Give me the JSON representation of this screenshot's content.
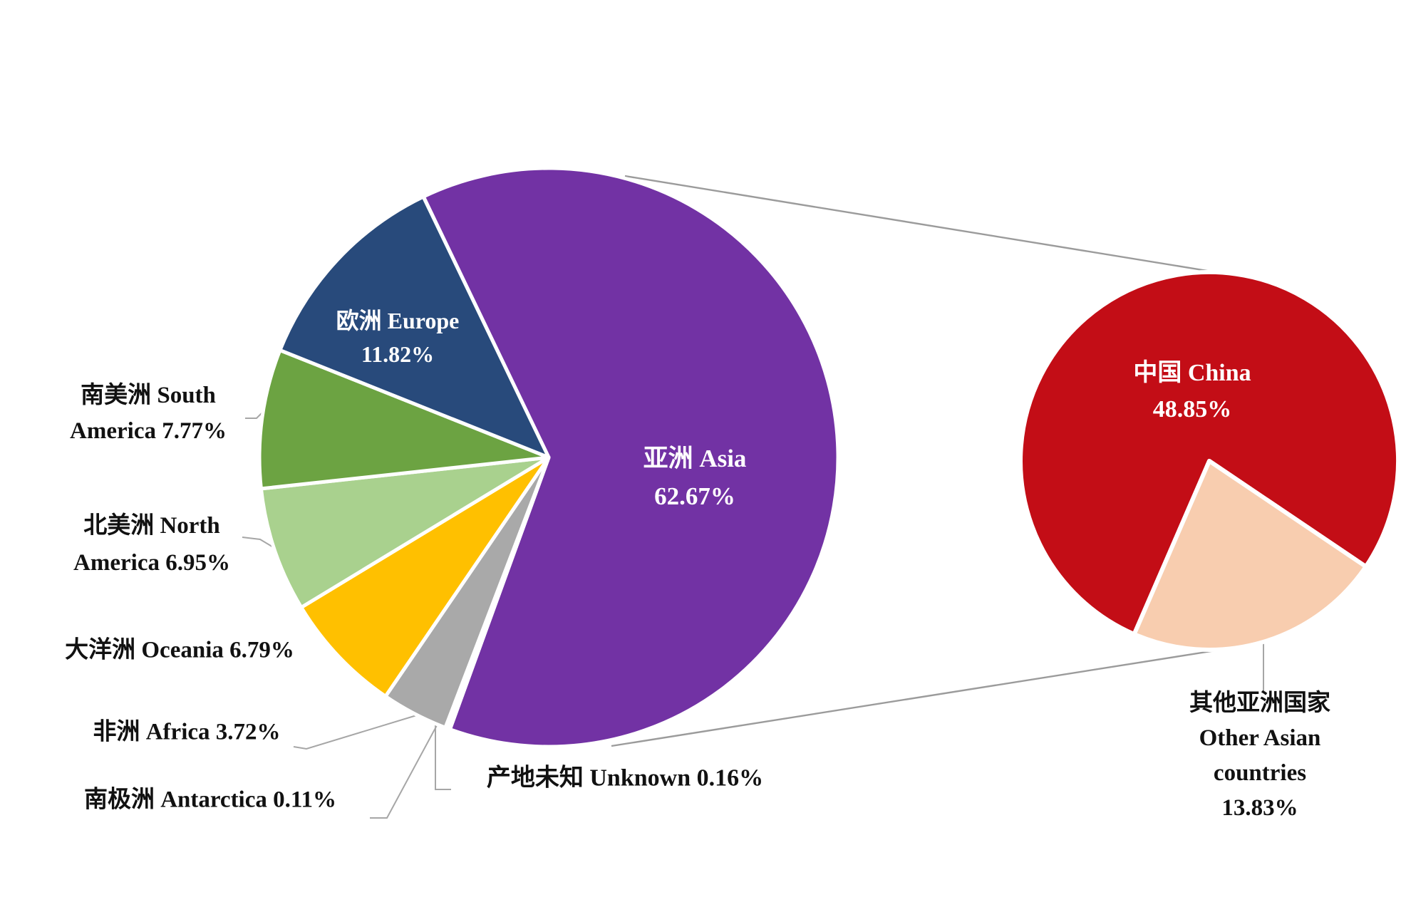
{
  "background": "#FFFFFF",
  "chart_data": {
    "type": "pie",
    "variant": "pie-of-pie",
    "title": "",
    "unit": "%",
    "legend_position": "none",
    "main_pie": {
      "slices": [
        {
          "id": "asia",
          "label_zh": "亚洲",
          "label_en": "Asia",
          "value": 62.67,
          "color": "#7232A4",
          "start_deg": -25.65,
          "sweep_deg": 225.61
        },
        {
          "id": "unknown",
          "label_zh": "产地未知",
          "label_en": "Unknown",
          "value": 0.16,
          "color": "#E7E6E6",
          "start_deg": 199.96,
          "sweep_deg": 0.58
        },
        {
          "id": "antarctica",
          "label_zh": "南极洲",
          "label_en": "Antarctica",
          "value": 0.11,
          "color": "#D9D9D9",
          "start_deg": 200.54,
          "sweep_deg": 0.4
        },
        {
          "id": "africa",
          "label_zh": "非洲",
          "label_en": "Africa",
          "value": 3.72,
          "color": "#A9A9A9",
          "start_deg": 200.94,
          "sweep_deg": 13.39
        },
        {
          "id": "oceania",
          "label_zh": "大洋洲",
          "label_en": "Oceania",
          "value": 6.79,
          "color": "#FFC000",
          "start_deg": 214.33,
          "sweep_deg": 24.44
        },
        {
          "id": "north-america",
          "label_zh": "北美洲",
          "label_en": "North America",
          "value": 6.95,
          "color": "#A9D18E",
          "start_deg": 238.77,
          "sweep_deg": 25.02
        },
        {
          "id": "south-america",
          "label_zh": "南美洲",
          "label_en": "South America",
          "value": 7.77,
          "color": "#6CA342",
          "start_deg": 263.79,
          "sweep_deg": 27.97
        },
        {
          "id": "europe",
          "label_zh": "欧洲",
          "label_en": "Europe",
          "value": 11.82,
          "color": "#284A7B",
          "start_deg": 291.76,
          "sweep_deg": 42.55
        }
      ]
    },
    "secondary_pie": {
      "description": "breakdown of Asia slice",
      "slices": [
        {
          "id": "china",
          "label_zh": "中国",
          "label_en": "China",
          "value": 48.85,
          "color": "#C30D16",
          "start_deg": 203.43,
          "sweep_deg": 280.57
        },
        {
          "id": "other-asian-countries",
          "label_zh": "其他亚洲国家",
          "label_en": "Other Asian countries",
          "value": 13.83,
          "color": "#F8CDAF",
          "start_deg": 124.0,
          "sweep_deg": 79.43
        }
      ]
    }
  },
  "labels": {
    "asia": {
      "lines": [
        "亚洲 Asia",
        "62.67%"
      ]
    },
    "europe": {
      "lines": [
        "欧洲 Europe",
        "11.82%"
      ]
    },
    "china": {
      "lines": [
        "中国 China",
        "48.85%"
      ]
    },
    "south_america": {
      "lines": [
        "南美洲 South",
        "America 7.77%"
      ]
    },
    "north_america": {
      "lines": [
        "北美洲 North",
        "America 6.95%"
      ]
    },
    "oceania": {
      "lines": [
        "大洋洲 Oceania 6.79%"
      ]
    },
    "africa": {
      "lines": [
        "非洲 Africa 3.72%"
      ]
    },
    "antarctica": {
      "lines": [
        "南极洲 Antarctica 0.11%"
      ]
    },
    "unknown": {
      "lines": [
        "产地未知 Unknown 0.16%"
      ]
    },
    "other_asian": {
      "lines": [
        "其他亚洲国家",
        "Other Asian",
        "countries",
        "13.83%"
      ]
    }
  }
}
